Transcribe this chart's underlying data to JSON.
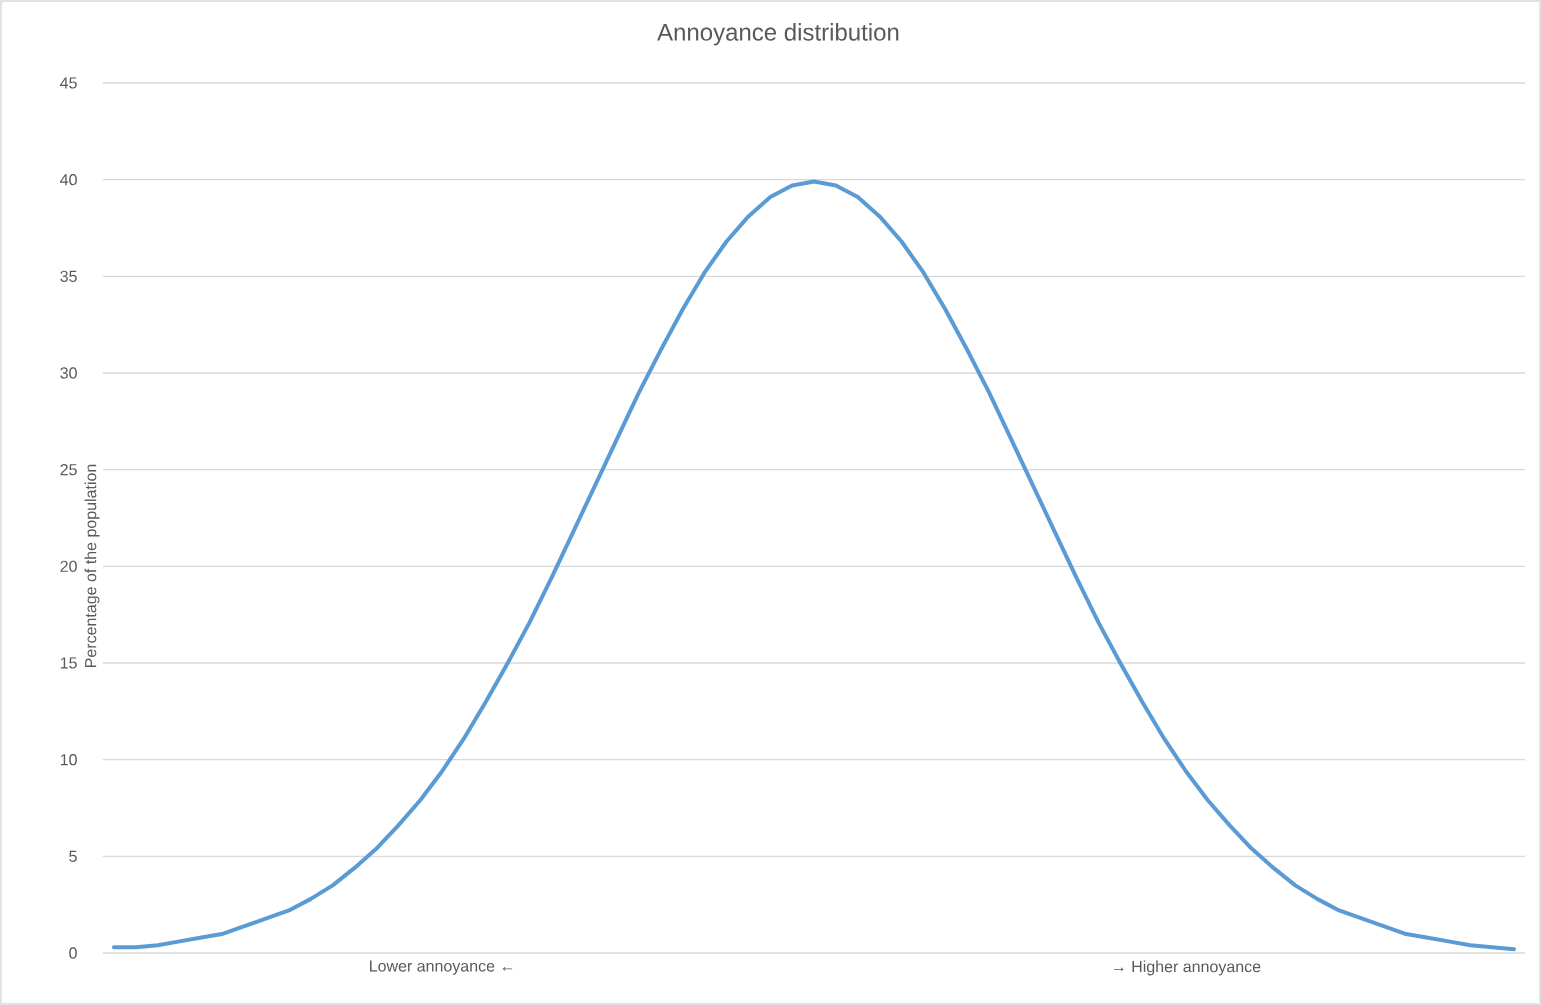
{
  "chart_data": {
    "type": "line",
    "title": "Annoyance distribution",
    "ylabel": "Percentage of the population",
    "categories": [
      null,
      null,
      null,
      null,
      null,
      null,
      null,
      null,
      null,
      null,
      null,
      null,
      null,
      null,
      null,
      "Lower annoyance ←",
      null,
      null,
      null,
      null,
      null,
      null,
      null,
      null,
      null,
      null,
      null,
      null,
      null,
      null,
      null,
      null,
      null,
      null,
      null,
      null,
      null,
      null,
      null,
      null,
      null,
      null,
      null,
      null,
      null,
      null,
      null,
      null,
      null,
      "→ Higher annoyance",
      null,
      null,
      null,
      null,
      null,
      null,
      null,
      null,
      null,
      null,
      null,
      null,
      null,
      null,
      null
    ],
    "values": [
      0.3,
      0.3,
      0.4,
      0.6,
      0.8,
      1.0,
      1.4,
      1.8,
      2.2,
      2.8,
      3.5,
      4.4,
      5.4,
      6.6,
      7.9,
      9.4,
      11.1,
      13.0,
      15.0,
      17.1,
      19.4,
      21.8,
      24.2,
      26.6,
      29.0,
      31.2,
      33.3,
      35.2,
      36.8,
      38.1,
      39.1,
      39.7,
      39.9,
      39.7,
      39.1,
      38.1,
      36.8,
      35.2,
      33.3,
      31.2,
      29.0,
      26.6,
      24.2,
      21.8,
      19.4,
      17.1,
      15.0,
      13.0,
      11.1,
      9.4,
      7.9,
      6.6,
      5.4,
      4.4,
      3.5,
      2.8,
      2.2,
      1.8,
      1.4,
      1.0,
      0.8,
      0.6,
      0.4,
      0.3,
      0.2
    ],
    "color": "#5b9bd5",
    "marker": "none",
    "line_style": "solid",
    "grid": "y",
    "ylim": [
      0,
      45
    ],
    "yticks": [
      0,
      5,
      10,
      15,
      20,
      25,
      30,
      35,
      40,
      45
    ]
  }
}
